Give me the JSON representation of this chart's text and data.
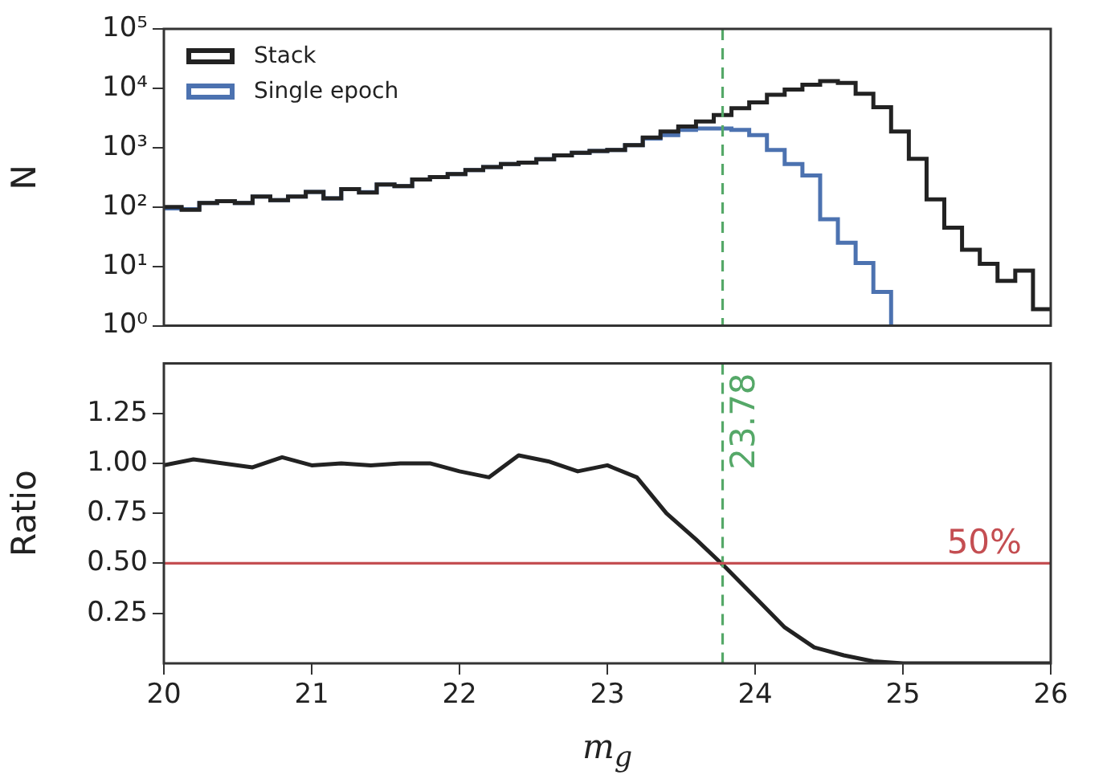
{
  "chart_data": [
    {
      "type": "histogram",
      "ylabel": "N",
      "log": true,
      "xlim": [
        20,
        26
      ],
      "ylim": [
        1,
        100000
      ],
      "yticks": [
        {
          "value": 1,
          "label": "10⁰"
        },
        {
          "value": 10,
          "label": "10¹"
        },
        {
          "value": 100,
          "label": "10²"
        },
        {
          "value": 1000,
          "label": "10³"
        },
        {
          "value": 10000,
          "label": "10⁴"
        },
        {
          "value": 100000,
          "label": "10⁵"
        }
      ],
      "tick_labels": "y",
      "legend": "top left",
      "bins": [
        20,
        20.12,
        20.24,
        20.36,
        20.48,
        20.6,
        20.72,
        20.84,
        20.96,
        21.08,
        21.2,
        21.32,
        21.44,
        21.56,
        21.68,
        21.8,
        21.92,
        22.04,
        22.16,
        22.28,
        22.4,
        22.52,
        22.64,
        22.76,
        22.88,
        23,
        23.12,
        23.24,
        23.36,
        23.48,
        23.6,
        23.72,
        23.84,
        23.96,
        24.08,
        24.2,
        24.32,
        24.44,
        24.56,
        24.68,
        24.8,
        24.92,
        25.04,
        25.16,
        25.28,
        25.4,
        25.52,
        25.64,
        25.76,
        25.88,
        26
      ],
      "series": [
        {
          "name": "Stack",
          "color": "#222222",
          "values": [
            100,
            90,
            117,
            125,
            117,
            150,
            130,
            150,
            180,
            140,
            200,
            175,
            240,
            225,
            290,
            320,
            360,
            420,
            470,
            530,
            560,
            640,
            740,
            820,
            880,
            910,
            1100,
            1480,
            1870,
            2270,
            2750,
            3550,
            4600,
            5800,
            7800,
            9500,
            11500,
            13200,
            12300,
            8100,
            4800,
            1870,
            650,
            135,
            45,
            19,
            11,
            5.7,
            8.5,
            1.9
          ]
        },
        {
          "name": "Single epoch",
          "color": "#4c72b0",
          "bins": [
            20,
            20.12,
            20.24,
            20.36,
            20.48,
            20.6,
            20.72,
            20.84,
            20.96,
            21.08,
            21.2,
            21.32,
            21.44,
            21.56,
            21.68,
            21.8,
            21.92,
            22.04,
            22.16,
            22.28,
            22.4,
            22.52,
            22.64,
            22.76,
            22.88,
            23,
            23.12,
            23.24,
            23.36,
            23.48,
            23.6,
            23.72,
            23.84,
            23.96,
            24.08,
            24.2,
            24.32,
            24.44,
            24.56,
            24.68,
            24.8,
            24.92
          ],
          "values": [
            95,
            92,
            117,
            125,
            117,
            150,
            130,
            150,
            180,
            140,
            200,
            178,
            240,
            225,
            290,
            320,
            360,
            420,
            470,
            530,
            560,
            640,
            740,
            820,
            880,
            910,
            1100,
            1420,
            1620,
            1990,
            2100,
            2100,
            1990,
            1620,
            910,
            530,
            340,
            62,
            25,
            11.4,
            3.7
          ]
        }
      ],
      "ref_lines": [
        {
          "axis": "x",
          "value": 23.78,
          "color": "#55a868",
          "line_style": "dashed"
        }
      ]
    },
    {
      "type": "line",
      "xlabel": "m$_{g}$",
      "ylabel": "Ratio",
      "xlim": [
        20,
        26
      ],
      "xticks": [
        20,
        21,
        22,
        23,
        24,
        25,
        26
      ],
      "ylim": [
        0,
        1.5
      ],
      "yticks": [
        0.25,
        {
          "value": 0.5,
          "label": "0.50"
        },
        0.75,
        {
          "value": 1,
          "label": "1.00"
        },
        1.25
      ],
      "series": [
        {
          "color": "#222222",
          "x": [
            20,
            20.2,
            20.4,
            20.6,
            20.8,
            21,
            21.2,
            21.4,
            21.6,
            21.8,
            22,
            22.2,
            22.4,
            22.6,
            22.8,
            23,
            23.2,
            23.4,
            23.6,
            23.8,
            24,
            24.2,
            24.4,
            24.6,
            24.8,
            25,
            25.2,
            25.4,
            25.6,
            25.8,
            26
          ],
          "values": [
            0.99,
            1.02,
            1,
            0.98,
            1.03,
            0.99,
            1,
            0.99,
            1,
            1,
            0.96,
            0.93,
            1.04,
            1.01,
            0.96,
            0.99,
            0.93,
            0.75,
            0.62,
            0.48,
            0.33,
            0.18,
            0.08,
            0.04,
            0.01,
            0,
            0,
            0,
            0,
            0,
            0
          ]
        }
      ],
      "ref_lines": [
        {
          "axis": "x",
          "value": 23.78,
          "label": "23.78",
          "color": "#55a868",
          "line_style": "dashed"
        },
        {
          "axis": "y",
          "value": 0.5,
          "label": "50%",
          "color": "#c44e52",
          "line_style": "solid"
        }
      ]
    }
  ]
}
